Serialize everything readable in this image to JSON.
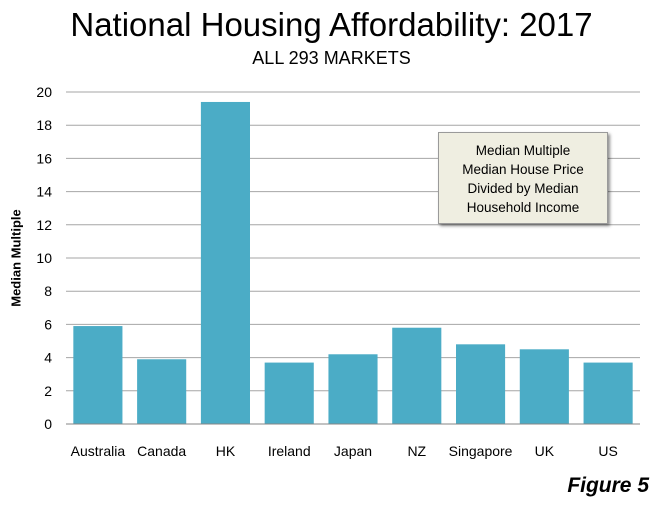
{
  "chart_data": {
    "type": "bar",
    "title": "National Housing Affordability: 2017",
    "subtitle": "ALL 293 MARKETS",
    "xlabel": "",
    "ylabel": "Median Multiple",
    "categories": [
      "Australia",
      "Canada",
      "HK",
      "Ireland",
      "Japan",
      "NZ",
      "Singapore",
      "UK",
      "US"
    ],
    "values": [
      5.9,
      3.9,
      19.4,
      3.7,
      4.2,
      5.8,
      4.8,
      4.5,
      3.7
    ],
    "ylim": [
      0,
      20
    ],
    "yticks": [
      0,
      2,
      4,
      6,
      8,
      10,
      12,
      14,
      16,
      18,
      20
    ],
    "grid": true,
    "bar_color": "#4bacc6",
    "annotation": [
      "Median Multiple",
      "Median House Price",
      "Divided by Median",
      "Household Income"
    ]
  },
  "figure_label": "Figure 5"
}
